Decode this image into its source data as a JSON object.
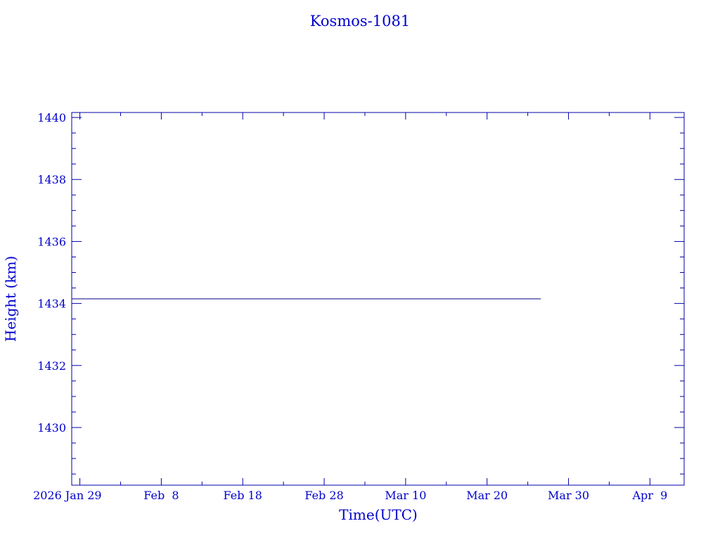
{
  "chart_data": {
    "type": "line",
    "title": "Kosmos-1081",
    "xlabel": "Time(UTC)",
    "ylabel": "Height (km)",
    "x_tick_labels": [
      "2026 Jan 29",
      "Feb  8",
      "Feb 18",
      "Feb 28",
      "Mar 10",
      "Mar 20",
      "Mar 30",
      "Apr  9"
    ],
    "x_tick_dates": [
      "2026-01-29",
      "2026-02-08",
      "2026-02-18",
      "2026-02-28",
      "2026-03-10",
      "2026-03-20",
      "2026-03-30",
      "2026-04-09"
    ],
    "xlim": [
      "2026-01-28",
      "2026-04-13.2"
    ],
    "y_ticks": [
      1430,
      1432,
      1434,
      1436,
      1438,
      1440
    ],
    "ylim": [
      1428.14,
      1440.16
    ],
    "grid": false,
    "series": [
      {
        "x": [
          "2026-01-28",
          "2026-03-26.6"
        ],
        "y": [
          1434.15,
          1434.15
        ]
      }
    ],
    "colors": {
      "axes": "#0000aa",
      "text": "#0000cc",
      "line": "#000088"
    }
  }
}
